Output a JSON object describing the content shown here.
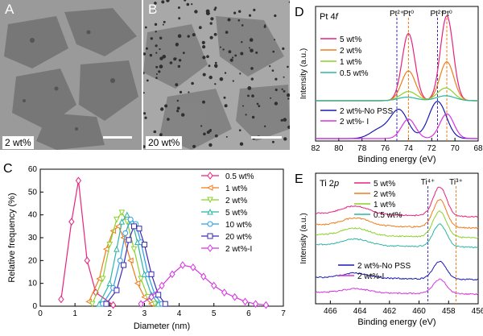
{
  "tem_a": {
    "letter": "A",
    "label": "2 wt%"
  },
  "tem_b": {
    "letter": "B",
    "label": "20 wt%"
  },
  "chart_data": [
    {
      "panel": "C",
      "type": "line",
      "xlabel": "Diameter (nm)",
      "ylabel": "Relative frequency (%)",
      "xlim": [
        0,
        7
      ],
      "ylim": [
        0,
        60
      ],
      "xticks": [
        0,
        1,
        2,
        3,
        4,
        5,
        6,
        7
      ],
      "yticks": [
        0,
        10,
        20,
        30,
        40,
        50,
        60
      ],
      "legend": "top-right",
      "series": [
        {
          "name": "0.5 wt%",
          "color": "#e8227d",
          "marker": "diamond",
          "x": [
            0.6,
            0.9,
            1.1,
            1.35,
            1.6,
            2.1
          ],
          "y": [
            3,
            37,
            55,
            20,
            6,
            0.5
          ]
        },
        {
          "name": "1 wt%",
          "color": "#f07c1a",
          "marker": "tri-left",
          "x": [
            1.4,
            1.7,
            1.9,
            2.1,
            2.25,
            2.4,
            2.6,
            2.8,
            3.0,
            3.2
          ],
          "y": [
            2,
            12,
            25,
            33,
            35,
            30,
            20,
            10,
            4,
            1
          ]
        },
        {
          "name": "2 wt%",
          "color": "#8cd12a",
          "marker": "tri-down",
          "x": [
            1.5,
            1.8,
            2.0,
            2.2,
            2.35,
            2.5,
            2.7,
            2.9,
            3.1,
            3.3
          ],
          "y": [
            1,
            12,
            27,
            38,
            41,
            37,
            25,
            12,
            4,
            1
          ]
        },
        {
          "name": "5 wt%",
          "color": "#2cb5a2",
          "marker": "tri-up",
          "x": [
            1.7,
            2.0,
            2.2,
            2.35,
            2.5,
            2.65,
            2.8,
            3.0,
            3.2,
            3.4
          ],
          "y": [
            1,
            10,
            25,
            37,
            40,
            37,
            28,
            14,
            5,
            1
          ]
        },
        {
          "name": "10 wt%",
          "color": "#2a9de8",
          "marker": "circle",
          "x": [
            1.8,
            2.1,
            2.3,
            2.45,
            2.6,
            2.75,
            2.9,
            3.1,
            3.3,
            3.5
          ],
          "y": [
            1,
            8,
            20,
            32,
            38,
            36,
            28,
            14,
            5,
            1
          ]
        },
        {
          "name": "20 wt%",
          "color": "#3a2bb5",
          "marker": "square",
          "x": [
            1.9,
            2.2,
            2.4,
            2.55,
            2.7,
            2.85,
            3.0,
            3.2,
            3.4,
            3.6
          ],
          "y": [
            1,
            7,
            18,
            29,
            35,
            34,
            27,
            14,
            5,
            1
          ]
        },
        {
          "name": "2 wt%-I",
          "color": "#d633e0",
          "marker": "diamond",
          "x": [
            2.9,
            3.2,
            3.5,
            3.8,
            4.1,
            4.4,
            4.7,
            5.0,
            5.3,
            5.6,
            5.9,
            6.2,
            6.5
          ],
          "y": [
            1,
            4,
            9,
            14,
            18,
            17,
            13,
            9,
            6,
            4,
            2,
            1,
            0.5
          ]
        }
      ]
    },
    {
      "panel": "D",
      "type": "line",
      "title_element": "Pt 4",
      "title_orbital": "f",
      "xlabel": "Binding energy (eV)",
      "ylabel": "Intensity (a.u.)",
      "xlim": [
        82,
        68
      ],
      "xticks": [
        82,
        80,
        78,
        76,
        74,
        72,
        70,
        68
      ],
      "reference_lines": [
        {
          "label": "Pt²⁺",
          "x": 75.0,
          "color": "#3a2bb5"
        },
        {
          "label": "Pt⁰",
          "x": 74.0,
          "color": "#f07c1a"
        },
        {
          "label": "Pt²⁺",
          "x": 71.5,
          "color": "#3a2bb5"
        },
        {
          "label": "Pt⁰",
          "x": 70.7,
          "color": "#f07c1a"
        }
      ],
      "series": [
        {
          "name": "5 wt%",
          "color": "#e8227d",
          "group": "top",
          "peaks": [
            {
              "x": 74.0,
              "h": 0.95,
              "w": 0.55
            },
            {
              "x": 70.7,
              "h": 1.2,
              "w": 0.55
            }
          ]
        },
        {
          "name": "2 wt%",
          "color": "#f07c1a",
          "group": "top",
          "peaks": [
            {
              "x": 74.0,
              "h": 0.42,
              "w": 0.6
            },
            {
              "x": 70.7,
              "h": 0.55,
              "w": 0.6
            }
          ]
        },
        {
          "name": "1 wt%",
          "color": "#8cd12a",
          "group": "top",
          "peaks": [
            {
              "x": 74.0,
              "h": 0.13,
              "w": 0.7
            },
            {
              "x": 70.8,
              "h": 0.18,
              "w": 0.7
            }
          ]
        },
        {
          "name": "0.5 wt%",
          "color": "#2cb5a2",
          "group": "top",
          "peaks": [
            {
              "x": 74.1,
              "h": 0.05,
              "w": 0.8
            },
            {
              "x": 70.8,
              "h": 0.07,
              "w": 0.8
            }
          ]
        },
        {
          "name": "2 wt%-No PSS",
          "color": "#1a1ab5",
          "group": "bottom",
          "peaks": [
            {
              "x": 76.5,
              "h": 0.1,
              "w": 0.8
            },
            {
              "x": 74.8,
              "h": 0.32,
              "w": 0.75
            },
            {
              "x": 71.5,
              "h": 0.42,
              "w": 0.75
            }
          ]
        },
        {
          "name": "2 wt%- I",
          "color": "#d633e0",
          "group": "bottom",
          "peaks": [
            {
              "x": 74.0,
              "h": 0.22,
              "w": 0.6
            },
            {
              "x": 70.7,
              "h": 0.28,
              "w": 0.6
            }
          ]
        }
      ]
    },
    {
      "panel": "E",
      "type": "line",
      "title_element": "Ti 2",
      "title_orbital": "p",
      "xlabel": "Binding energy (eV)",
      "ylabel": "Intensity (a.u.)",
      "xlim": [
        467,
        456
      ],
      "xticks": [
        466,
        464,
        462,
        460,
        458,
        456
      ],
      "reference_lines": [
        {
          "label": "Ti⁴⁺",
          "x": 459.4,
          "color": "#3a2bb5"
        },
        {
          "label": "Ti³⁺",
          "x": 457.5,
          "color": "#f07c1a"
        }
      ],
      "series": [
        {
          "name": "5 wt%",
          "color": "#e8227d",
          "group": "top"
        },
        {
          "name": "2 wt%",
          "color": "#f07c1a",
          "group": "top"
        },
        {
          "name": "1 wt%",
          "color": "#8cd12a",
          "group": "top"
        },
        {
          "name": "0.5 wt%",
          "color": "#2cb5a2",
          "group": "top"
        },
        {
          "name": "2 wt%-No PSS",
          "color": "#1a1ab5",
          "group": "bottom"
        },
        {
          "name": "2 wt%-I",
          "color": "#d633e0",
          "group": "bottom"
        }
      ]
    }
  ]
}
